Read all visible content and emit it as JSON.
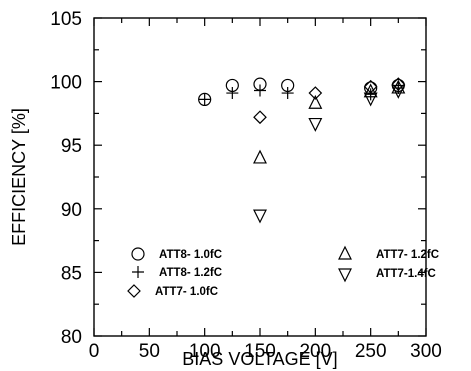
{
  "chart_data": {
    "type": "scatter",
    "xlabel": "BIAS VOLTAGE [V]",
    "ylabel": "EFFICIENCY  [%]",
    "xlim": [
      0,
      300
    ],
    "ylim": [
      80,
      105
    ],
    "xticks": [
      "0",
      "50",
      "100",
      "150",
      "200",
      "250",
      "300"
    ],
    "yticks": [
      "80",
      "85",
      "90",
      "95",
      "100",
      "105"
    ],
    "grid": false,
    "series": [
      {
        "name": "ATT8- 1.0fC",
        "marker": "circle",
        "x": [
          100,
          125,
          150,
          175,
          250,
          275
        ],
        "y": [
          98.6,
          99.7,
          99.8,
          99.7,
          99.5,
          99.7
        ]
      },
      {
        "name": "ATT8- 1.2fC",
        "marker": "plus",
        "x": [
          100,
          125,
          150,
          175,
          250,
          275
        ],
        "y": [
          98.6,
          99.1,
          99.3,
          99.1,
          99.0,
          99.5
        ]
      },
      {
        "name": "ATT7- 1.0fC",
        "marker": "diamond",
        "x": [
          150,
          200,
          250,
          275
        ],
        "y": [
          97.2,
          99.1,
          99.6,
          99.8
        ]
      },
      {
        "name": "ATT7- 1.2fC",
        "marker": "triangle-up",
        "x": [
          150,
          200,
          250,
          275
        ],
        "y": [
          94.0,
          98.3,
          99.2,
          99.5
        ]
      },
      {
        "name": "ATT7-1.4fC",
        "marker": "triangle-down",
        "x": [
          150,
          200,
          250,
          275
        ],
        "y": [
          89.5,
          96.7,
          98.7,
          99.3
        ]
      }
    ]
  }
}
